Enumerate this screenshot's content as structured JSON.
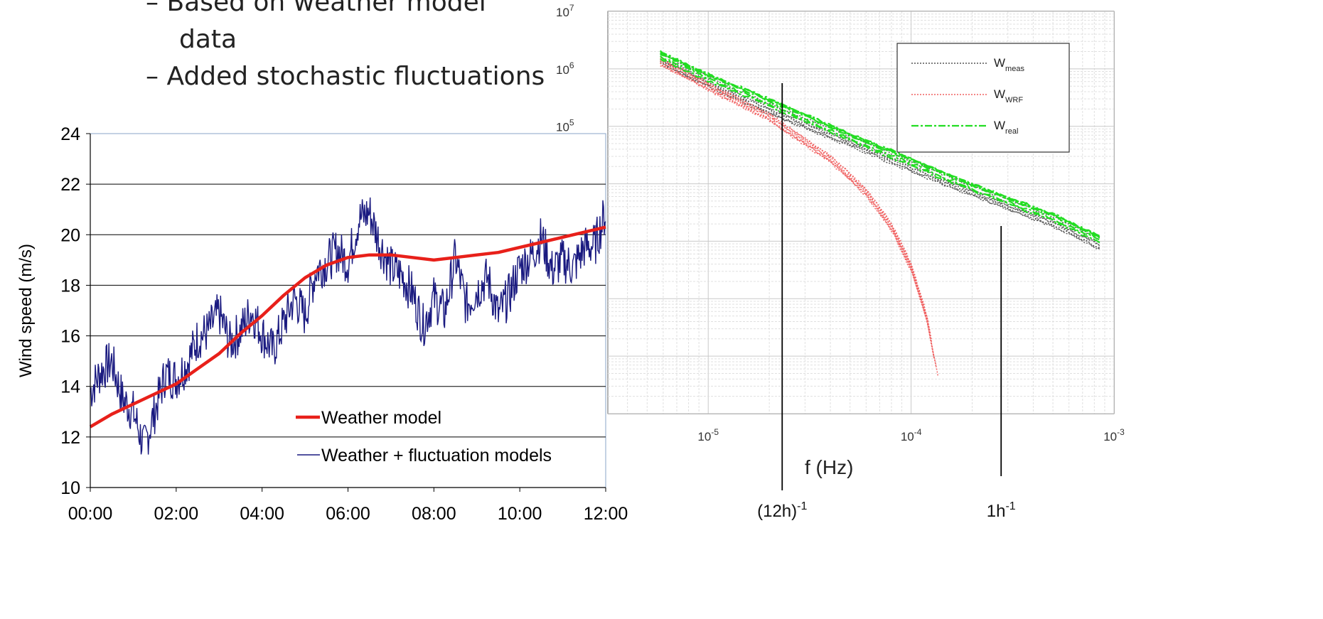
{
  "bullets": [
    {
      "dash": "–",
      "line1": "Based on weather model",
      "line2": "data"
    },
    {
      "dash": "–",
      "line1": "Added stochastic fluctuations"
    }
  ],
  "annotations": {
    "f_label": "f (Hz)",
    "marker_12h": {
      "base": "(12h)",
      "sup": "-1",
      "freq_hz": 2.3148e-05
    },
    "marker_1h": {
      "base": "1h",
      "sup": "-1",
      "freq_hz": 0.00027778
    }
  },
  "chart_data": [
    {
      "type": "line",
      "title": "",
      "xlabel": "",
      "ylabel": "Wind speed (m/s)",
      "ylim": [
        10,
        24
      ],
      "yticks": [
        10,
        12,
        14,
        16,
        18,
        20,
        22,
        24
      ],
      "xlim_hours": [
        0,
        12
      ],
      "xticks": [
        "00:00",
        "02:00",
        "04:00",
        "06:00",
        "08:00",
        "10:00",
        "12:00"
      ],
      "grid": "horizontal",
      "legend_position": "bottom-right",
      "colors": {
        "weather_model": "#e8201a",
        "fluctuation": "#1a1a80"
      },
      "series": [
        {
          "name": "Weather model",
          "x_hours": [
            0,
            0.5,
            1,
            1.5,
            2,
            2.5,
            3,
            3.5,
            4,
            4.5,
            5,
            5.5,
            6,
            6.5,
            7,
            7.5,
            8,
            8.5,
            9,
            9.5,
            10,
            10.5,
            11,
            11.5,
            12
          ],
          "values": [
            12.4,
            12.9,
            13.3,
            13.7,
            14.1,
            14.7,
            15.3,
            16.1,
            16.8,
            17.6,
            18.3,
            18.8,
            19.1,
            19.2,
            19.2,
            19.1,
            19.0,
            19.1,
            19.2,
            19.3,
            19.5,
            19.7,
            19.9,
            20.1,
            20.3
          ]
        },
        {
          "name": "Weather + fluctuation models",
          "x_hours": [
            0,
            0.25,
            0.5,
            0.75,
            1,
            1.25,
            1.5,
            1.75,
            2,
            2.25,
            2.5,
            2.75,
            3,
            3.25,
            3.5,
            3.75,
            4,
            4.25,
            4.5,
            4.75,
            5,
            5.25,
            5.5,
            5.75,
            6,
            6.25,
            6.5,
            6.75,
            7,
            7.25,
            7.5,
            7.75,
            8,
            8.25,
            8.5,
            8.75,
            9,
            9.25,
            9.5,
            9.75,
            10,
            10.25,
            10.5,
            10.75,
            11,
            11.25,
            11.5,
            11.75,
            12
          ],
          "values": [
            13.8,
            14.6,
            15.0,
            13.5,
            13.0,
            11.6,
            13.0,
            14.5,
            14.3,
            14.9,
            15.9,
            16.2,
            16.9,
            15.7,
            16.2,
            17.0,
            16.1,
            15.4,
            16.5,
            17.5,
            16.8,
            18.6,
            18.9,
            19.4,
            18.9,
            20.6,
            20.9,
            19.6,
            18.7,
            18.4,
            17.7,
            16.4,
            17.5,
            16.9,
            19.1,
            17.2,
            17.8,
            18.3,
            16.8,
            17.6,
            18.7,
            19.1,
            19.9,
            18.6,
            19.0,
            18.7,
            19.5,
            19.6,
            20.9
          ]
        }
      ]
    },
    {
      "type": "line",
      "title": "",
      "xlabel": "f (Hz)",
      "ylabel": "",
      "xscale": "log",
      "yscale": "log",
      "xlim": [
        3.2e-06,
        0.001
      ],
      "ylim": [
        1,
        10000000.0
      ],
      "xtick_labels": [
        {
          "base": "10",
          "exp": "-5",
          "value": 1e-05
        },
        {
          "base": "10",
          "exp": "-4",
          "value": 0.0001
        },
        {
          "base": "10",
          "exp": "-3",
          "value": 0.001
        }
      ],
      "ytick_labels": [
        {
          "base": "10",
          "exp": "7",
          "value": 10000000.0
        },
        {
          "base": "10",
          "exp": "6",
          "value": 1000000.0
        },
        {
          "base": "10",
          "exp": "5",
          "value": 100000.0
        }
      ],
      "grid": "both",
      "legend_position": "top-right",
      "colors": {
        "meas": "#555555",
        "wrf": "#f06060",
        "real": "#22dd22"
      },
      "series": [
        {
          "name": "W",
          "sub": "meas",
          "x": [
            5.8e-06,
            1e-05,
            2e-05,
            5e-05,
            0.0001,
            0.0002,
            0.0005,
            0.00085
          ],
          "values": [
            1500000.0,
            600000.0,
            200000.0,
            55000.0,
            20000.0,
            7500.0,
            2200.0,
            900
          ]
        },
        {
          "name": "W",
          "sub": "WRF",
          "x": [
            5.8e-06,
            1e-05,
            2e-05,
            4e-05,
            6e-05,
            8e-05,
            0.0001,
            0.00012,
            0.00014
          ],
          "values": [
            1500000.0,
            550000.0,
            160000.0,
            30000.0,
            8000.0,
            2000.0,
            400,
            50,
            3
          ]
        },
        {
          "name": "W",
          "sub": "real",
          "x": [
            5.8e-06,
            1e-05,
            2e-05,
            5e-05,
            0.0001,
            0.0002,
            0.0005,
            0.00085
          ],
          "values": [
            1600000.0,
            650000.0,
            240000.0,
            60000.0,
            22000.0,
            8000.0,
            2400.0,
            1000.0
          ]
        }
      ]
    }
  ]
}
